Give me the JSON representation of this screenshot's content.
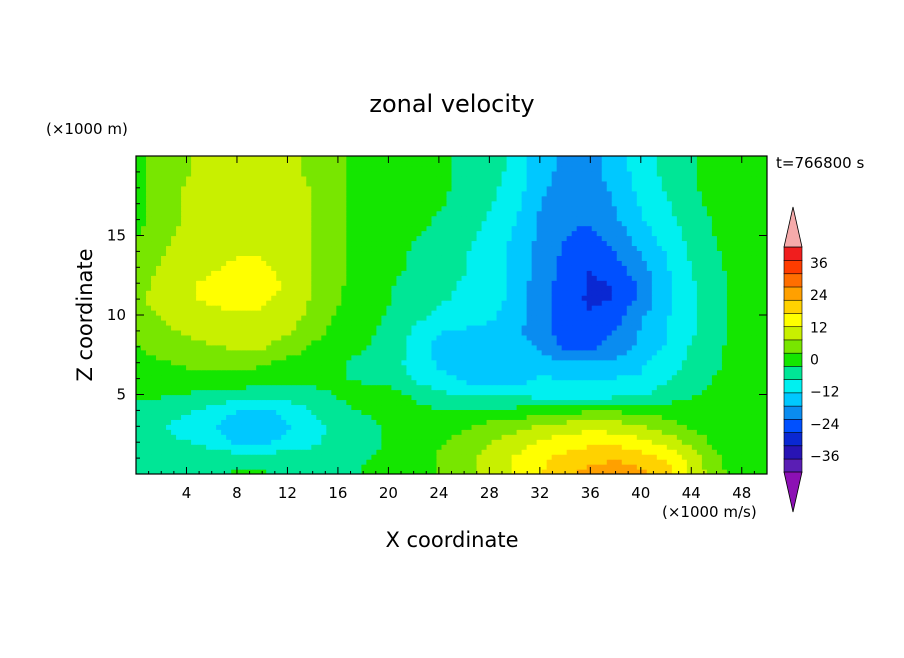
{
  "chart_data": {
    "type": "heatmap",
    "title": "zonal velocity",
    "xlabel": "X coordinate",
    "ylabel": "Z coordinate",
    "x_unit_note": "(×1000 m/s)",
    "y_unit_note": "(×1000 m)",
    "time_label": "t=766800 s",
    "xlim": [
      0,
      50
    ],
    "ylim": [
      0,
      20
    ],
    "x_ticks": [
      4,
      8,
      12,
      16,
      20,
      24,
      28,
      32,
      36,
      40,
      44,
      48
    ],
    "y_ticks": [
      5,
      10,
      15
    ],
    "x": [
      0,
      2,
      4,
      6,
      8,
      10,
      12,
      14,
      16,
      18,
      20,
      22,
      24,
      26,
      28,
      30,
      32,
      34,
      36,
      38,
      40,
      42,
      44,
      46,
      48,
      50
    ],
    "y": [
      0,
      1,
      2,
      3,
      4,
      5,
      6,
      7,
      8,
      9,
      10,
      11,
      12,
      13,
      14,
      15,
      16,
      17,
      18,
      19,
      20
    ],
    "z": [
      [
        -7,
        -6,
        -5,
        -3,
        -2,
        -2,
        -4,
        -6,
        -4,
        -2,
        -1,
        0,
        3,
        6,
        9,
        13,
        17,
        21,
        24,
        25,
        24,
        20,
        12,
        4,
        0,
        0
      ],
      [
        -7,
        -6,
        -5,
        -4,
        -4,
        -4,
        -5,
        -6,
        -5,
        -3,
        -1,
        0,
        3,
        6,
        9,
        13,
        16,
        19,
        21,
        22,
        20,
        17,
        10,
        3,
        0,
        0
      ],
      [
        -7,
        -7,
        -7,
        -9,
        -13,
        -14,
        -10,
        -8,
        -6,
        -4,
        -2,
        0,
        2,
        4,
        7,
        10,
        13,
        15,
        16,
        16,
        14,
        11,
        6,
        1,
        0,
        0
      ],
      [
        -6,
        -7,
        -9,
        -12,
        -16,
        -17,
        -13,
        -9,
        -6,
        -4,
        -2,
        -1,
        0,
        2,
        4,
        6,
        8,
        10,
        11,
        10,
        8,
        5,
        2,
        0,
        0,
        0
      ],
      [
        -4,
        -5,
        -7,
        -9,
        -12,
        -14,
        -11,
        -7,
        -4,
        -2,
        -1,
        -1,
        -2,
        -2,
        -1,
        -1,
        0,
        1,
        2,
        2,
        1,
        0,
        0,
        0,
        0,
        0
      ],
      [
        -1,
        -2,
        -3,
        -4,
        -5,
        -6,
        -5,
        -4,
        -2,
        -1,
        -1,
        -3,
        -6,
        -8,
        -8,
        -8,
        -9,
        -10,
        -10,
        -9,
        -8,
        -5,
        -3,
        -1,
        0,
        0
      ],
      [
        0,
        1,
        1,
        1,
        1,
        0,
        -1,
        -1,
        -2,
        -3,
        -4,
        -8,
        -11,
        -13,
        -16,
        -15,
        -12,
        -12,
        -12,
        -12,
        -12,
        -8,
        -5,
        -2,
        0,
        0
      ],
      [
        1,
        2,
        3,
        4,
        4,
        3,
        1,
        0,
        -2,
        -4,
        -5,
        -9,
        -13,
        -14,
        -15,
        -13,
        -15,
        -17,
        -17,
        -16,
        -13,
        -10,
        -6,
        -3,
        -1,
        0
      ],
      [
        2,
        4,
        6,
        7,
        8,
        8,
        5,
        2,
        0,
        -2,
        -4,
        -9,
        -14,
        -14,
        -14,
        -15,
        -18,
        -23,
        -23,
        -20,
        -16,
        -12,
        -7,
        -3,
        -1,
        0
      ],
      [
        3,
        6,
        8,
        9,
        10,
        10,
        8,
        4,
        1,
        -1,
        -4,
        -8,
        -12,
        -13,
        -14,
        -16,
        -20,
        -25,
        -26,
        -22,
        -17,
        -13,
        -8,
        -4,
        -1,
        0
      ],
      [
        4,
        8,
        10,
        11,
        12,
        12,
        10,
        6,
        2,
        0,
        -3,
        -6,
        -8,
        -9,
        -11,
        -15,
        -20,
        -25,
        -27,
        -24,
        -18,
        -13,
        -8,
        -4,
        -1,
        0
      ],
      [
        6,
        10,
        12,
        13,
        14,
        13,
        11,
        7,
        3,
        0,
        -2,
        -5,
        -7,
        -8,
        -10,
        -14,
        -20,
        -25,
        -28,
        -27,
        -21,
        -14,
        -8,
        -4,
        -1,
        1
      ],
      [
        5,
        9,
        12,
        13,
        15,
        14,
        12,
        7,
        3,
        1,
        -2,
        -4,
        -6,
        -8,
        -10,
        -14,
        -20,
        -24,
        -28,
        -27,
        -21,
        -14,
        -8,
        -4,
        -1,
        0
      ],
      [
        4,
        8,
        11,
        12,
        13,
        13,
        11,
        7,
        3,
        1,
        -1,
        -3,
        -5,
        -7,
        -10,
        -14,
        -19,
        -24,
        -27,
        -24,
        -19,
        -13,
        -7,
        -3,
        -1,
        0
      ],
      [
        3,
        7,
        10,
        11,
        12,
        12,
        11,
        7,
        3,
        1,
        -1,
        -3,
        -5,
        -7,
        -10,
        -14,
        -19,
        -23,
        -25,
        -22,
        -17,
        -12,
        -7,
        -3,
        0,
        0
      ],
      [
        2,
        6,
        9,
        10,
        11,
        11,
        11,
        7,
        3,
        1,
        0,
        -2,
        -4,
        -6,
        -9,
        -13,
        -18,
        -22,
        -23,
        -20,
        -15,
        -10,
        -6,
        -2,
        0,
        0
      ],
      [
        1,
        5,
        8,
        10,
        11,
        11,
        11,
        7,
        3,
        1,
        0,
        -1,
        -3,
        -5,
        -8,
        -12,
        -18,
        -22,
        -22,
        -18,
        -13,
        -9,
        -5,
        -2,
        0,
        0
      ],
      [
        1,
        5,
        8,
        10,
        11,
        11,
        10,
        7,
        3,
        1,
        0,
        -1,
        -2,
        -4,
        -7,
        -11,
        -17,
        -21,
        -21,
        -17,
        -12,
        -8,
        -4,
        -1,
        0,
        0
      ],
      [
        1,
        5,
        8,
        10,
        11,
        11,
        10,
        7,
        3,
        1,
        0,
        -1,
        -2,
        -3,
        -6,
        -10,
        -16,
        -20,
        -20,
        -16,
        -11,
        -7,
        -3,
        -1,
        0,
        0
      ],
      [
        1,
        4,
        7,
        9,
        10,
        10,
        9,
        6,
        3,
        1,
        0,
        -1,
        -2,
        -3,
        -5,
        -9,
        -15,
        -19,
        -19,
        -15,
        -10,
        -6,
        -3,
        -1,
        0,
        0
      ],
      [
        1,
        4,
        7,
        9,
        10,
        10,
        9,
        6,
        3,
        1,
        0,
        -1,
        -2,
        -3,
        -5,
        -9,
        -15,
        -19,
        -19,
        -15,
        -10,
        -6,
        -3,
        -1,
        0,
        0
      ]
    ],
    "levels": [
      -42,
      -36,
      -30,
      -24,
      -18,
      -12,
      -6,
      0,
      6,
      12,
      18,
      24,
      30,
      36,
      42
    ],
    "level_labels": [
      "36",
      "24",
      "12",
      "0",
      "−12",
      "−24",
      "−36"
    ],
    "level_label_values": [
      36,
      24,
      12,
      0,
      -12,
      -24,
      -36
    ],
    "colorbar_colors": [
      "#8c10b4",
      "#5a1eb4",
      "#2814b4",
      "#0a28d2",
      "#0050ff",
      "#0a8cf0",
      "#00c8ff",
      "#00f0f0",
      "#00e696",
      "#14e600",
      "#78e600",
      "#c8f000",
      "#ffff00",
      "#ffd200",
      "#ffa000",
      "#ff6e00",
      "#ff3c00",
      "#f01e1e",
      "#f5aaaa"
    ],
    "legend_placement": "right",
    "grid": false
  }
}
